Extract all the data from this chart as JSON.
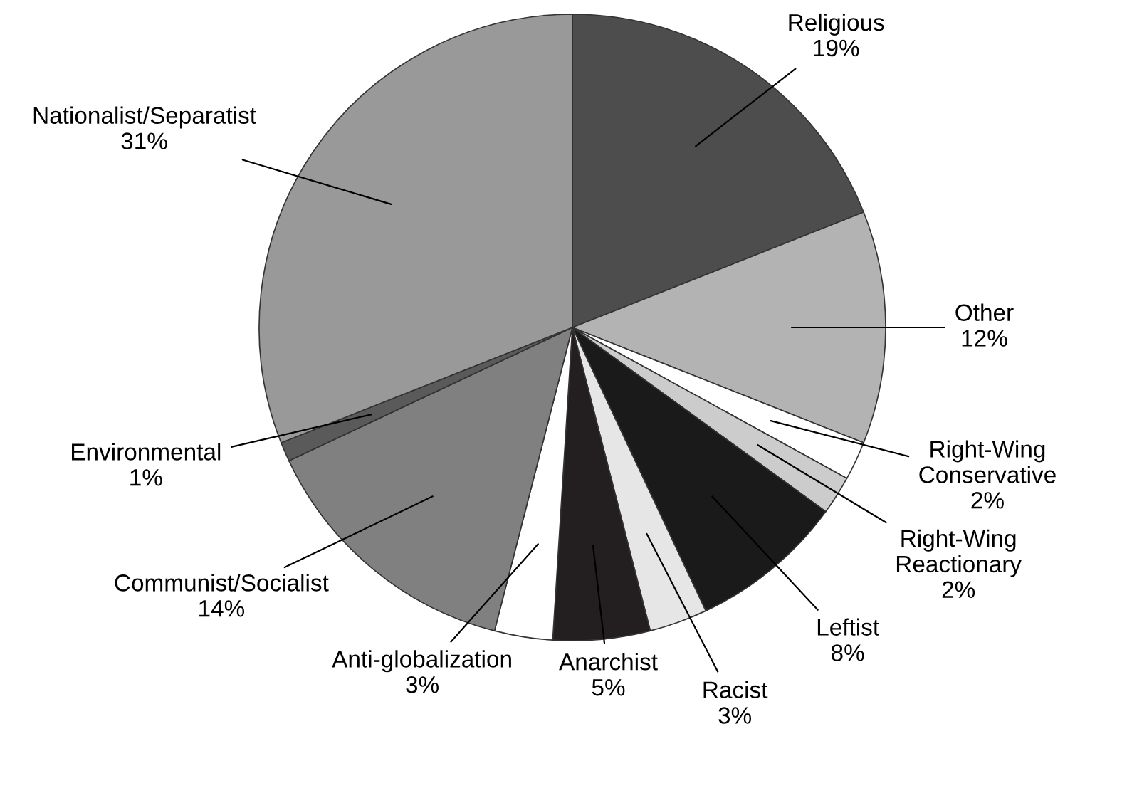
{
  "chart_data": {
    "type": "pie",
    "categories": [
      "Religious",
      "Other",
      "Right-Wing Conservative",
      "Right-Wing Reactionary",
      "Leftist",
      "Racist",
      "Anarchist",
      "Anti-globalization",
      "Communist/Socialist",
      "Environmental",
      "Nationalist/Separatist"
    ],
    "values": [
      19,
      12,
      2,
      2,
      8,
      3,
      5,
      3,
      14,
      1,
      31
    ],
    "colors": [
      "#4d4d4d",
      "#b3b3b3",
      "#ffffff",
      "#cccccc",
      "#1a1a1a",
      "#e6e6e6",
      "#231f20",
      "#ffffff",
      "#808080",
      "#5a5a5a",
      "#999999"
    ],
    "value_labels": [
      "19%",
      "12%",
      "2%",
      "2%",
      "8%",
      "3%",
      "5%",
      "3%",
      "14%",
      "1%",
      "31%"
    ]
  }
}
